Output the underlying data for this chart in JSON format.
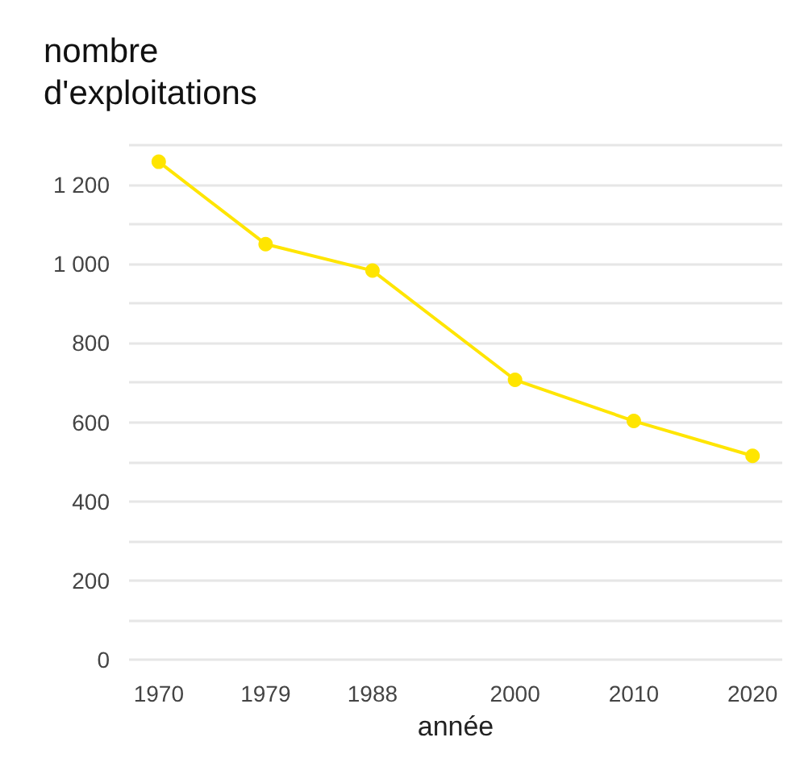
{
  "chart_data": {
    "type": "line",
    "ylabel": "nombre d'exploitations",
    "xlabel": "année",
    "x": [
      1970,
      1979,
      1988,
      2000,
      2010,
      2020
    ],
    "series": [
      {
        "color": "#ffe500",
        "values": [
          1258,
          1050,
          983,
          707,
          603,
          515
        ]
      }
    ],
    "xlim": [
      1967.5,
      2022.5
    ],
    "xticks": [
      1970,
      1979,
      1988,
      2000,
      2010,
      2020
    ],
    "ylim": [
      0,
      1300
    ],
    "yticks": [
      0,
      {
        "value": 100,
        "label": null
      },
      200,
      {
        "value": 300,
        "label": null
      },
      400,
      {
        "value": 500,
        "label": null
      },
      600,
      {
        "value": 700,
        "label": null
      },
      800,
      {
        "value": 900,
        "label": null
      },
      {
        "value": 1000,
        "label": "1 000"
      },
      {
        "value": 1100,
        "label": null
      },
      {
        "value": 1200,
        "label": "1 200"
      },
      {
        "value": 1300,
        "label": null
      }
    ],
    "grid": "y",
    "marker": "circle",
    "line_style": "solid"
  }
}
